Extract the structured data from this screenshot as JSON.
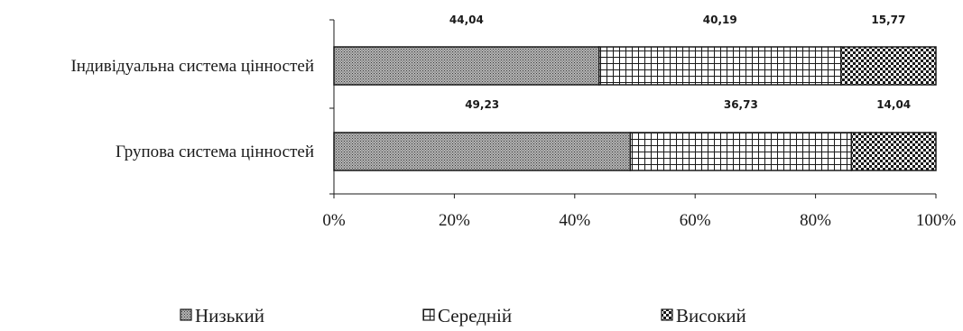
{
  "chart_data": {
    "type": "bar",
    "orientation": "horizontal",
    "stacked": true,
    "percent_stacked": true,
    "categories": [
      "Індивідуальна система цінностей",
      "Групова система цінностей"
    ],
    "series": [
      {
        "name": "Низький",
        "values": [
          44.04,
          49.23
        ],
        "labels": [
          "44,04",
          "49,23"
        ],
        "pattern": "dense-dots"
      },
      {
        "name": "Середній",
        "values": [
          40.19,
          36.73
        ],
        "labels": [
          "40,19",
          "36,73"
        ],
        "pattern": "grid"
      },
      {
        "name": "Високий",
        "values": [
          15.77,
          14.04
        ],
        "labels": [
          "15,77",
          "14,04"
        ],
        "pattern": "checker"
      }
    ],
    "xlim": [
      0,
      100
    ],
    "x_ticks": [
      0,
      20,
      40,
      60,
      80,
      100
    ],
    "x_tick_labels": [
      "0%",
      "20%",
      "40%",
      "60%",
      "80%",
      "100%"
    ],
    "grid": false,
    "legend_position": "bottom",
    "colors": {
      "stroke": "#1a1a1a",
      "fill_dark": "#8c8c8c",
      "fill_light": "#ffffff"
    }
  }
}
